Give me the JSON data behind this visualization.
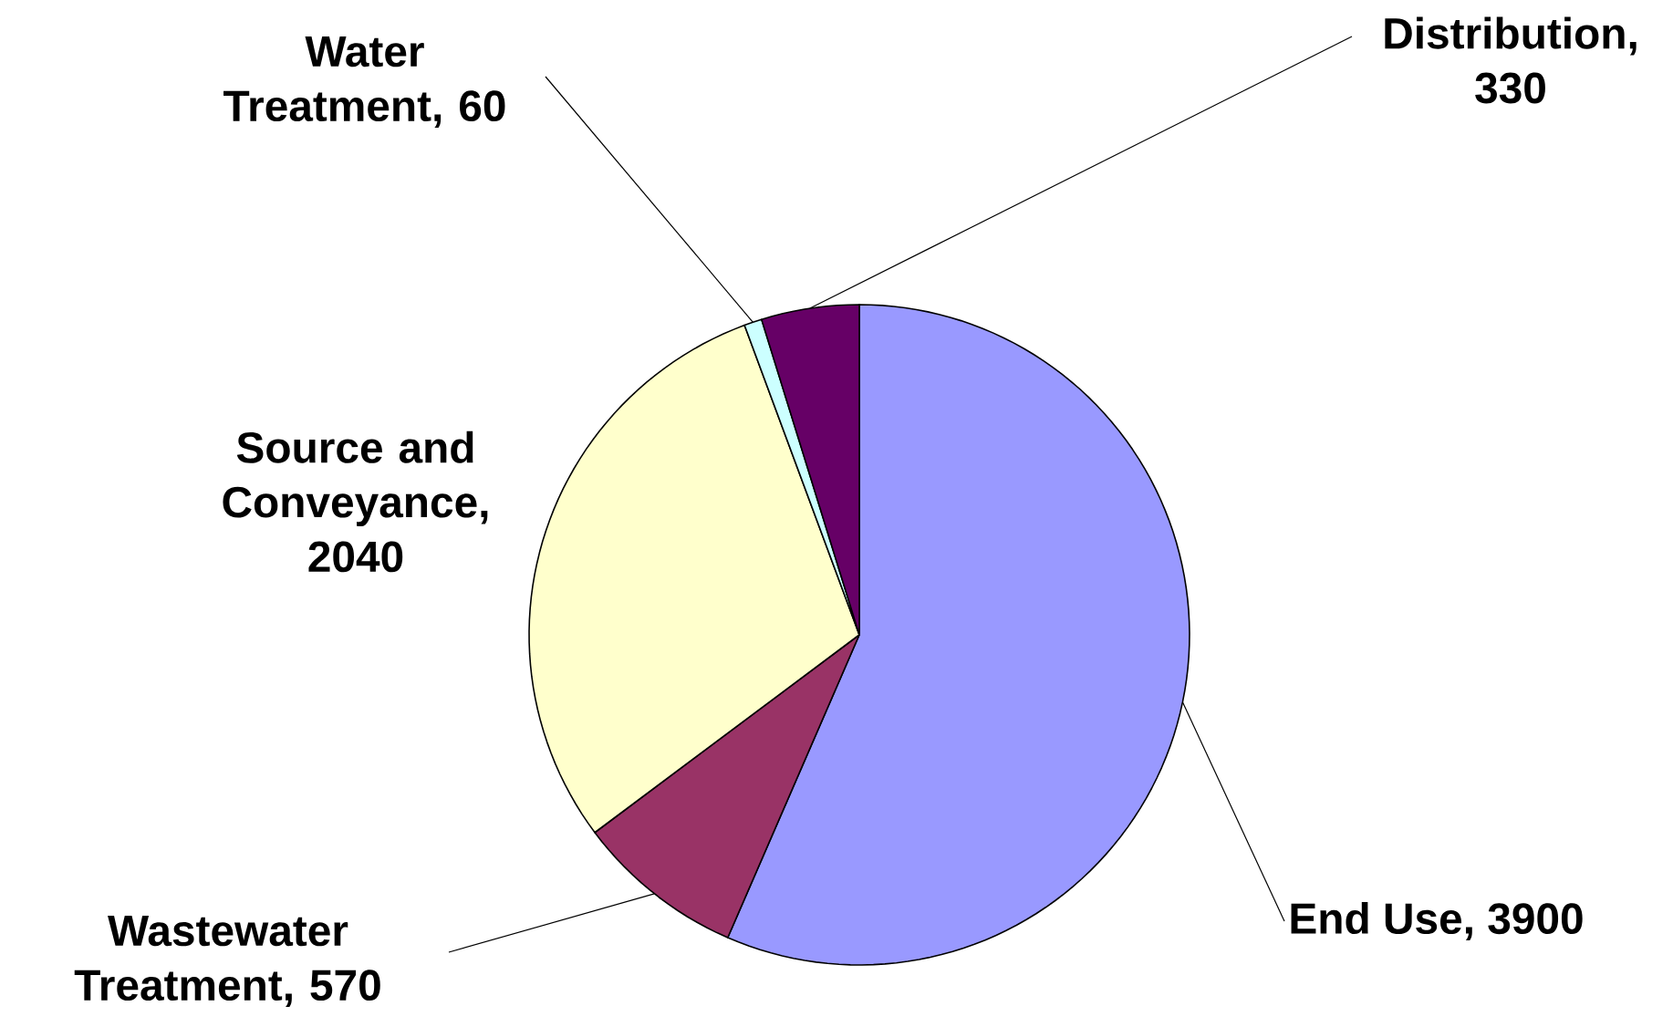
{
  "chart_data": {
    "type": "pie",
    "categories": [
      "End Use, 3900",
      "Wastewater Treatment, 570",
      "Source and Conveyance, 2040",
      "Water Treatment, 60",
      "Distribution, 330"
    ],
    "values": [
      3900,
      570,
      2040,
      60,
      330
    ],
    "colors": [
      "#9999ff",
      "#993366",
      "#ffffcc",
      "#ccffff",
      "#660066"
    ]
  }
}
